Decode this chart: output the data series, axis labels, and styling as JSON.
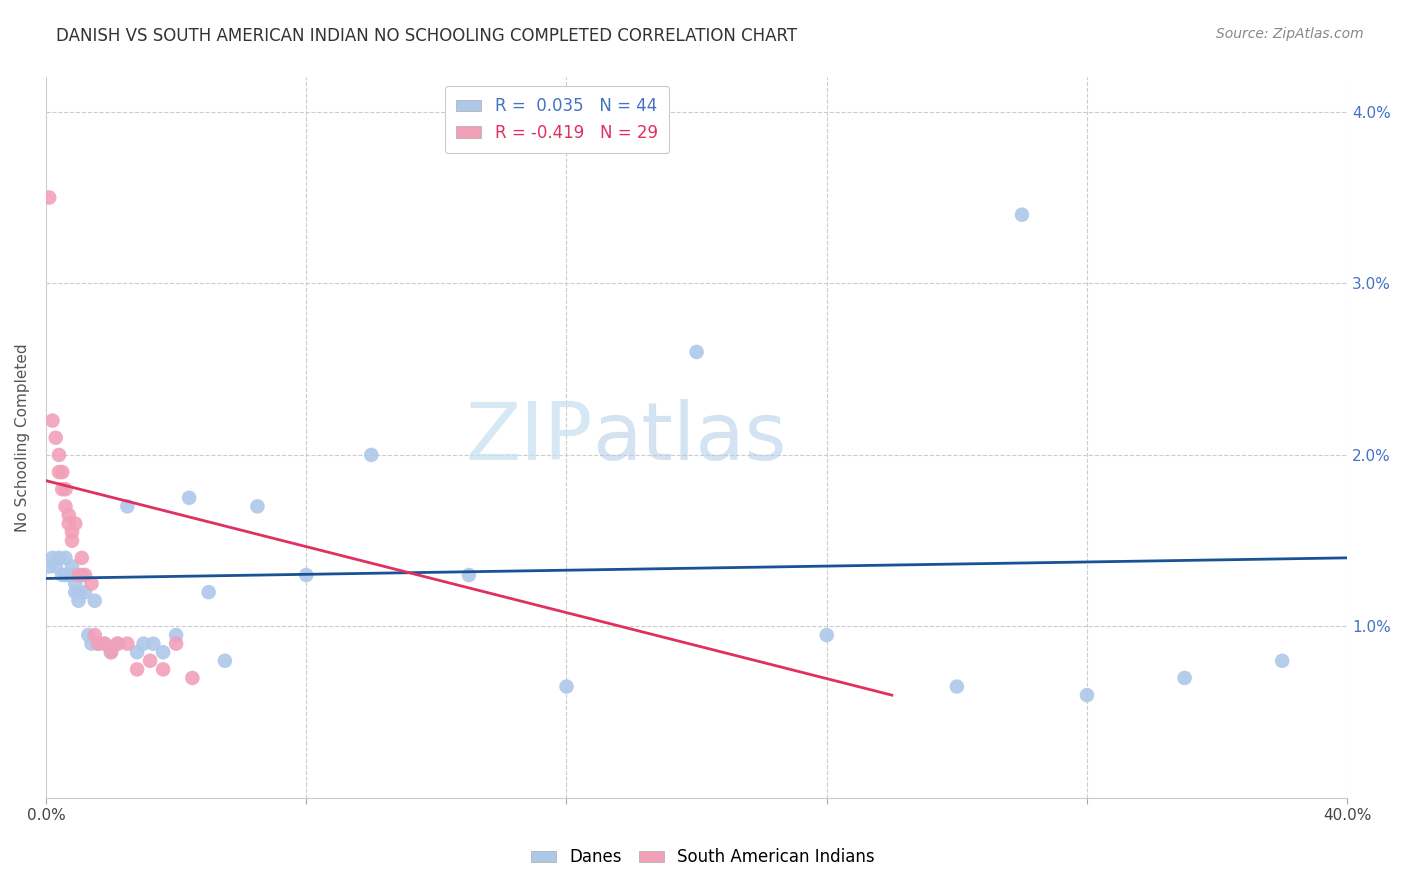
{
  "title": "DANISH VS SOUTH AMERICAN INDIAN NO SCHOOLING COMPLETED CORRELATION CHART",
  "source": "Source: ZipAtlas.com",
  "ylabel": "No Schooling Completed",
  "xlim": [
    0.0,
    0.4
  ],
  "ylim": [
    0.0,
    0.042
  ],
  "legend1_R": " 0.035",
  "legend1_N": "44",
  "legend2_R": "-0.419",
  "legend2_N": "29",
  "blue_color": "#adc8e8",
  "pink_color": "#f2a0b8",
  "line_blue": "#1a5296",
  "line_pink": "#e03060",
  "watermark_zip": "ZIP",
  "watermark_atlas": "atlas",
  "danes_x": [
    0.001,
    0.002,
    0.003,
    0.004,
    0.005,
    0.006,
    0.006,
    0.007,
    0.008,
    0.008,
    0.009,
    0.009,
    0.01,
    0.01,
    0.011,
    0.012,
    0.013,
    0.014,
    0.015,
    0.016,
    0.018,
    0.02,
    0.022,
    0.025,
    0.028,
    0.03,
    0.033,
    0.036,
    0.04,
    0.044,
    0.05,
    0.055,
    0.065,
    0.08,
    0.1,
    0.13,
    0.16,
    0.2,
    0.24,
    0.28,
    0.3,
    0.32,
    0.35,
    0.38
  ],
  "danes_y": [
    0.0135,
    0.014,
    0.0135,
    0.014,
    0.013,
    0.013,
    0.014,
    0.013,
    0.0135,
    0.013,
    0.012,
    0.0125,
    0.012,
    0.0115,
    0.013,
    0.012,
    0.0095,
    0.009,
    0.0115,
    0.009,
    0.009,
    0.0085,
    0.009,
    0.017,
    0.0085,
    0.009,
    0.009,
    0.0085,
    0.0095,
    0.0175,
    0.012,
    0.008,
    0.017,
    0.013,
    0.02,
    0.013,
    0.0065,
    0.026,
    0.0095,
    0.0065,
    0.034,
    0.006,
    0.007,
    0.008
  ],
  "sam_x": [
    0.001,
    0.002,
    0.003,
    0.004,
    0.004,
    0.005,
    0.005,
    0.006,
    0.006,
    0.007,
    0.007,
    0.008,
    0.008,
    0.009,
    0.01,
    0.011,
    0.012,
    0.014,
    0.015,
    0.016,
    0.018,
    0.02,
    0.022,
    0.025,
    0.028,
    0.032,
    0.036,
    0.04,
    0.045
  ],
  "sam_y": [
    0.035,
    0.022,
    0.021,
    0.02,
    0.019,
    0.019,
    0.018,
    0.018,
    0.017,
    0.016,
    0.0165,
    0.0155,
    0.015,
    0.016,
    0.013,
    0.014,
    0.013,
    0.0125,
    0.0095,
    0.009,
    0.009,
    0.0085,
    0.009,
    0.009,
    0.0075,
    0.008,
    0.0075,
    0.009,
    0.007
  ],
  "blue_line_x": [
    0.0,
    0.4
  ],
  "blue_line_y": [
    0.0128,
    0.014
  ],
  "pink_line_x": [
    0.0,
    0.26
  ],
  "pink_line_y": [
    0.0185,
    0.006
  ]
}
